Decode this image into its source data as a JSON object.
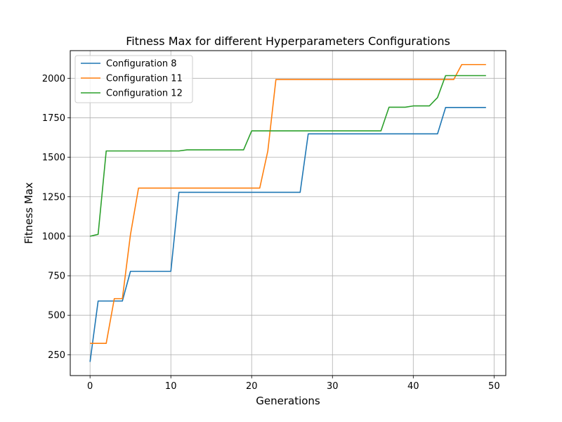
{
  "chart_data": {
    "type": "line",
    "title": "Fitness Max for different Hyperparameters Configurations",
    "xlabel": "Generations",
    "ylabel": "Fitness Max",
    "xlim": [
      -2.45,
      51.45
    ],
    "ylim": [
      118,
      2175
    ],
    "xticks": [
      0,
      10,
      20,
      30,
      40,
      50
    ],
    "yticks": [
      250,
      500,
      750,
      1000,
      1250,
      1500,
      1750,
      2000
    ],
    "grid": true,
    "legend_position": "upper-left",
    "series": [
      {
        "name": "Configuration 8",
        "color": "#1f77b4",
        "x": [
          0,
          1,
          4,
          5,
          10,
          11,
          26,
          27,
          43,
          44,
          49
        ],
        "y": [
          205,
          590,
          590,
          778,
          778,
          1278,
          1278,
          1648,
          1648,
          1815,
          1815
        ]
      },
      {
        "name": "Configuration 11",
        "color": "#ff7f0e",
        "x": [
          0,
          2,
          3,
          4,
          5,
          6,
          21,
          22,
          23,
          45,
          46,
          49
        ],
        "y": [
          322,
          322,
          605,
          605,
          1010,
          1305,
          1305,
          1540,
          1992,
          1992,
          2087,
          2087
        ]
      },
      {
        "name": "Configuration 12",
        "color": "#2ca02c",
        "x": [
          0,
          1,
          2,
          11,
          12,
          19,
          20,
          36,
          37,
          39,
          40,
          42,
          43,
          44,
          49
        ],
        "y": [
          1000,
          1012,
          1540,
          1540,
          1547,
          1547,
          1667,
          1667,
          1817,
          1817,
          1825,
          1825,
          1878,
          2017,
          2017
        ]
      }
    ]
  }
}
